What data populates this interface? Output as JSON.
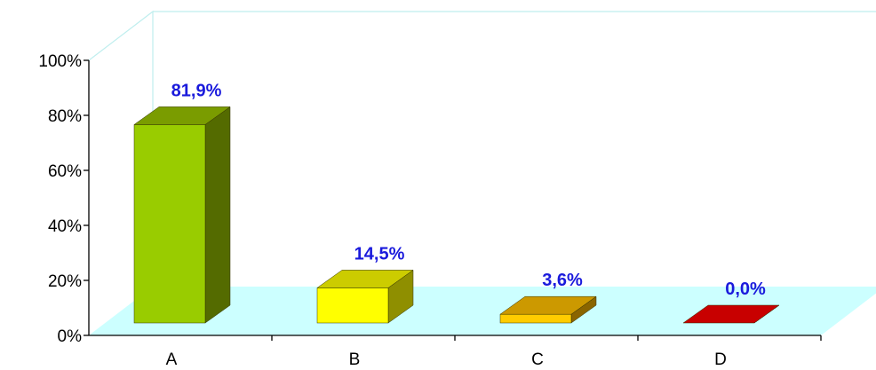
{
  "chart_data": {
    "type": "bar",
    "categories": [
      "A",
      "B",
      "C",
      "D"
    ],
    "values": [
      81.9,
      14.5,
      3.6,
      0.0
    ],
    "data_labels": [
      "81,9%",
      "14,5%",
      "3,6%",
      "0,0%"
    ],
    "y_ticks": [
      0,
      20,
      40,
      60,
      80,
      100
    ],
    "y_tick_labels": [
      "0%",
      "20%",
      "40%",
      "60%",
      "80%",
      "100%"
    ],
    "ylim": [
      0,
      100
    ],
    "grid": false,
    "legend": "none",
    "three_d": true,
    "colors": {
      "bars": [
        {
          "front": "#99cc00",
          "top": "#7a9c00",
          "side": "#546b00"
        },
        {
          "front": "#ffff00",
          "top": "#cccc00",
          "side": "#8f8f00"
        },
        {
          "front": "#ffcc00",
          "top": "#cc9900",
          "side": "#8a6500"
        },
        {
          "front": "#c80000",
          "top": "#c80000",
          "side": "#7a0000"
        }
      ],
      "floor": "#ccffff",
      "wall_edge": "#bfeeee",
      "axis": "#000000",
      "data_label": "#1a1adc"
    }
  }
}
